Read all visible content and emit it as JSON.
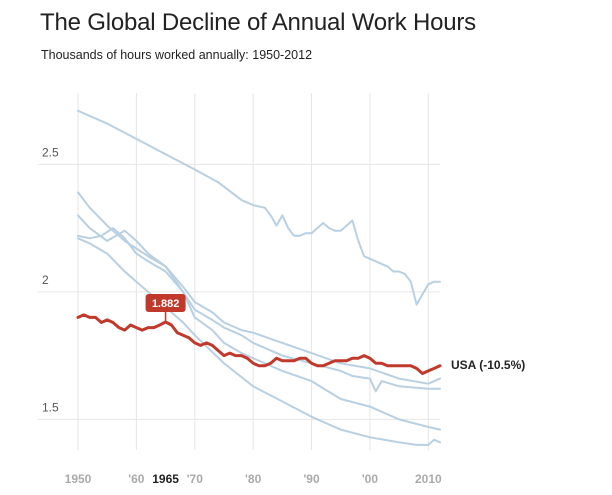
{
  "chart_data": {
    "type": "line",
    "title": "The Global Decline of Annual Work Hours",
    "subtitle": "Thousands of hours worked annually: 1950-2012",
    "xlabel": "",
    "ylabel": "",
    "xlim": [
      1950,
      2012
    ],
    "ylim": [
      1.38,
      2.78
    ],
    "grid": true,
    "y_ticks": [
      {
        "value": 1.5,
        "label": "1.5"
      },
      {
        "value": 2,
        "label": "2"
      },
      {
        "value": 2.5,
        "label": "2.5"
      }
    ],
    "x_ticks": [
      {
        "value": 1950,
        "label": "1950"
      },
      {
        "value": 1960,
        "label": "'60"
      },
      {
        "value": 1965,
        "label": "1965",
        "highlight": true
      },
      {
        "value": 1970,
        "label": "'70"
      },
      {
        "value": 1980,
        "label": "'80"
      },
      {
        "value": 1990,
        "label": "'90"
      },
      {
        "value": 2000,
        "label": "'00"
      },
      {
        "value": 2010,
        "label": "2010"
      }
    ],
    "x_grid": [
      1950,
      1960,
      1970,
      1980,
      1990,
      2000,
      2010
    ],
    "colors": {
      "highlight": "#c0392b",
      "other": "#b8d0e2",
      "grid": "#e6e6e6"
    },
    "series": [
      {
        "highlight": false,
        "x": [
          1950,
          1955,
          1960,
          1965,
          1970,
          1974,
          1978,
          1980,
          1982,
          1983,
          1984,
          1985,
          1986,
          1987,
          1988,
          1989,
          1990,
          1991,
          1992,
          1993,
          1994,
          1995,
          1996,
          1997,
          1998,
          1999,
          2000,
          2001,
          2002,
          2003,
          2004,
          2005,
          2006,
          2007,
          2008,
          2009,
          2010,
          2011,
          2012
        ],
        "y": [
          2.71,
          2.66,
          2.6,
          2.54,
          2.48,
          2.43,
          2.36,
          2.34,
          2.33,
          2.3,
          2.26,
          2.3,
          2.25,
          2.22,
          2.22,
          2.23,
          2.23,
          2.25,
          2.27,
          2.25,
          2.24,
          2.24,
          2.26,
          2.28,
          2.2,
          2.14,
          2.13,
          2.12,
          2.11,
          2.1,
          2.08,
          2.08,
          2.07,
          2.04,
          1.95,
          1.99,
          2.03,
          2.04,
          2.04
        ]
      },
      {
        "highlight": false,
        "x": [
          1950,
          1952,
          1955,
          1958,
          1960,
          1962,
          1965,
          1968,
          1970,
          1973,
          1975,
          1978,
          1980,
          1985,
          1990,
          1995,
          2000,
          2005,
          2010,
          2012
        ],
        "y": [
          2.39,
          2.33,
          2.26,
          2.2,
          2.17,
          2.14,
          2.1,
          2.02,
          1.96,
          1.92,
          1.88,
          1.85,
          1.84,
          1.8,
          1.76,
          1.72,
          1.7,
          1.66,
          1.64,
          1.66
        ]
      },
      {
        "highlight": false,
        "x": [
          1950,
          1952,
          1955,
          1958,
          1960,
          1962,
          1965,
          1968,
          1970,
          1973,
          1975,
          1978,
          1980,
          1985,
          1990,
          1995,
          1997,
          2000,
          2001,
          2002,
          2005,
          2010,
          2012
        ],
        "y": [
          2.3,
          2.25,
          2.2,
          2.24,
          2.2,
          2.15,
          2.1,
          2.0,
          1.93,
          1.89,
          1.86,
          1.83,
          1.8,
          1.75,
          1.72,
          1.69,
          1.67,
          1.66,
          1.61,
          1.65,
          1.63,
          1.62,
          1.62
        ]
      },
      {
        "highlight": false,
        "x": [
          1950,
          1952,
          1954,
          1956,
          1958,
          1960,
          1962,
          1965,
          1968,
          1970,
          1973,
          1975,
          1978,
          1980,
          1985,
          1990,
          1995,
          2000,
          2005,
          2010,
          2012
        ],
        "y": [
          2.22,
          2.21,
          2.22,
          2.25,
          2.21,
          2.15,
          2.12,
          2.08,
          2.0,
          1.9,
          1.85,
          1.8,
          1.76,
          1.74,
          1.69,
          1.65,
          1.58,
          1.55,
          1.5,
          1.47,
          1.46
        ]
      },
      {
        "highlight": false,
        "x": [
          1950,
          1952,
          1955,
          1958,
          1960,
          1962,
          1965,
          1968,
          1970,
          1975,
          1980,
          1985,
          1990,
          1995,
          2000,
          2005,
          2008,
          2010,
          2011,
          2012
        ],
        "y": [
          2.21,
          2.19,
          2.15,
          2.08,
          2.04,
          2.0,
          1.94,
          1.88,
          1.83,
          1.72,
          1.63,
          1.57,
          1.51,
          1.46,
          1.43,
          1.41,
          1.4,
          1.4,
          1.42,
          1.41
        ]
      },
      {
        "name": "USA (-10.5%)",
        "highlight": true,
        "x": [
          1950,
          1951,
          1952,
          1953,
          1954,
          1955,
          1956,
          1957,
          1958,
          1959,
          1960,
          1961,
          1962,
          1963,
          1964,
          1965,
          1966,
          1967,
          1968,
          1969,
          1970,
          1971,
          1972,
          1973,
          1974,
          1975,
          1976,
          1977,
          1978,
          1979,
          1980,
          1981,
          1982,
          1983,
          1984,
          1985,
          1986,
          1987,
          1988,
          1989,
          1990,
          1991,
          1992,
          1993,
          1994,
          1995,
          1996,
          1997,
          1998,
          1999,
          2000,
          2001,
          2002,
          2003,
          2004,
          2005,
          2006,
          2007,
          2008,
          2009,
          2010,
          2011,
          2012
        ],
        "y": [
          1.9,
          1.91,
          1.9,
          1.9,
          1.88,
          1.89,
          1.88,
          1.86,
          1.85,
          1.87,
          1.86,
          1.85,
          1.86,
          1.86,
          1.87,
          1.882,
          1.87,
          1.84,
          1.83,
          1.82,
          1.8,
          1.79,
          1.8,
          1.79,
          1.77,
          1.75,
          1.76,
          1.75,
          1.75,
          1.74,
          1.72,
          1.71,
          1.71,
          1.72,
          1.74,
          1.73,
          1.73,
          1.73,
          1.74,
          1.74,
          1.72,
          1.71,
          1.71,
          1.72,
          1.73,
          1.73,
          1.73,
          1.74,
          1.74,
          1.75,
          1.74,
          1.72,
          1.72,
          1.71,
          1.71,
          1.71,
          1.71,
          1.71,
          1.7,
          1.68,
          1.69,
          1.7,
          1.71
        ]
      }
    ],
    "callout": {
      "x": 1965,
      "y": 1.882,
      "label": "1.882"
    },
    "end_label": "USA (-10.5%)"
  }
}
